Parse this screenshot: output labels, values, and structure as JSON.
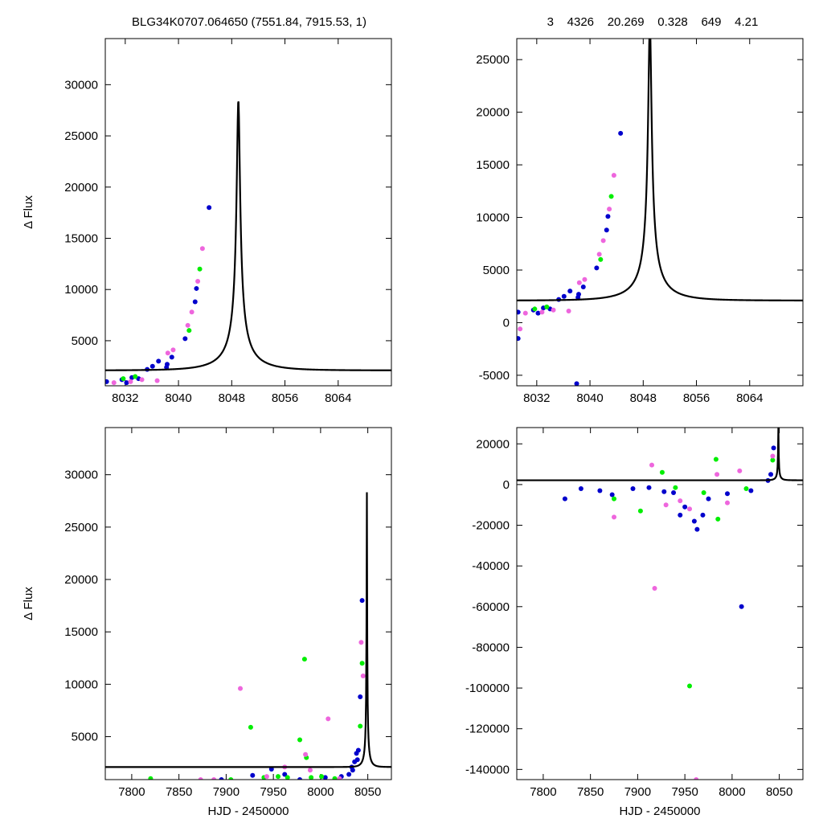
{
  "header": {
    "left_title": "BLG34K0707.064650 (7551.84, 7915.53,    1)",
    "right_title": "3    4326    20.269    0.328    649    4.21"
  },
  "colors": {
    "series_a": "#0000cc",
    "series_b": "#00ee00",
    "series_c": "#ee66dd",
    "model": "#000000"
  },
  "model_params": {
    "t0": 8049.0,
    "tE": 6.0,
    "u0": 0.04,
    "fs": 1100,
    "fb": 1000
  },
  "chart_data": [
    {
      "type": "scatter",
      "id": "top-left",
      "xlim": [
        8029,
        8072
      ],
      "ylim": [
        600,
        34500
      ],
      "xticks": [
        8032,
        8040,
        8048,
        8056,
        8064
      ],
      "yticks": [
        5000,
        10000,
        15000,
        20000,
        25000,
        30000
      ],
      "xlabel": "",
      "ylabel": "Δ Flux",
      "has_model": true,
      "series": [
        {
          "color": "series_a",
          "points": [
            [
              8029.2,
              1000
            ],
            [
              8031.5,
              1200
            ],
            [
              8032.2,
              900
            ],
            [
              8033.0,
              1400
            ],
            [
              8034.0,
              1300
            ],
            [
              8035.3,
              2200
            ],
            [
              8036.1,
              2500
            ],
            [
              8037.0,
              3000
            ],
            [
              8038.2,
              2400
            ],
            [
              8038.3,
              2700
            ],
            [
              8039.0,
              3400
            ],
            [
              8041.0,
              5200
            ],
            [
              8042.5,
              8800
            ],
            [
              8042.7,
              10100
            ],
            [
              8044.6,
              18000
            ]
          ]
        },
        {
          "color": "series_b",
          "points": [
            [
              8031.7,
              1300
            ],
            [
              8033.5,
              1500
            ],
            [
              8041.6,
              6000
            ],
            [
              8043.2,
              12000
            ]
          ]
        },
        {
          "color": "series_c",
          "points": [
            [
              8030.3,
              900
            ],
            [
              8032.8,
              1000
            ],
            [
              8034.5,
              1200
            ],
            [
              8036.8,
              1100
            ],
            [
              8038.4,
              3800
            ],
            [
              8039.2,
              4100
            ],
            [
              8041.4,
              6500
            ],
            [
              8042.0,
              7800
            ],
            [
              8042.9,
              10800
            ],
            [
              8043.6,
              14000
            ]
          ]
        }
      ]
    },
    {
      "type": "scatter",
      "id": "top-right",
      "xlim": [
        8029,
        8072
      ],
      "ylim": [
        -6000,
        27000
      ],
      "xticks": [
        8032,
        8040,
        8048,
        8056,
        8064
      ],
      "yticks": [
        -5000,
        0,
        5000,
        10000,
        15000,
        20000,
        25000
      ],
      "xlabel": "",
      "ylabel": "",
      "has_model": true,
      "series": [
        {
          "color": "series_a",
          "points": [
            [
              8029.2,
              1000
            ],
            [
              8029.2,
              -1500
            ],
            [
              8031.5,
              1200
            ],
            [
              8032.2,
              900
            ],
            [
              8033.0,
              1400
            ],
            [
              8034.0,
              1300
            ],
            [
              8035.3,
              2200
            ],
            [
              8036.1,
              2500
            ],
            [
              8037.0,
              3000
            ],
            [
              8038.2,
              2400
            ],
            [
              8038.3,
              2700
            ],
            [
              8039.0,
              3400
            ],
            [
              8041.0,
              5200
            ],
            [
              8042.5,
              8800
            ],
            [
              8042.7,
              10100
            ],
            [
              8044.6,
              18000
            ],
            [
              8038.0,
              -5800
            ]
          ]
        },
        {
          "color": "series_b",
          "points": [
            [
              8031.7,
              1300
            ],
            [
              8033.5,
              1500
            ],
            [
              8041.6,
              6000
            ],
            [
              8043.2,
              12000
            ]
          ]
        },
        {
          "color": "series_c",
          "points": [
            [
              8029.5,
              -600
            ],
            [
              8030.3,
              900
            ],
            [
              8032.8,
              1000
            ],
            [
              8034.5,
              1200
            ],
            [
              8036.8,
              1100
            ],
            [
              8038.4,
              3800
            ],
            [
              8039.2,
              4100
            ],
            [
              8041.4,
              6500
            ],
            [
              8042.0,
              7800
            ],
            [
              8042.9,
              10800
            ],
            [
              8043.6,
              14000
            ]
          ]
        }
      ]
    },
    {
      "type": "scatter",
      "id": "bottom-left",
      "xlim": [
        7772,
        8075
      ],
      "ylim": [
        900,
        34500
      ],
      "xticks": [
        7800,
        7850,
        7900,
        7950,
        8000,
        8050
      ],
      "yticks": [
        5000,
        10000,
        15000,
        20000,
        25000,
        30000
      ],
      "xlabel": "HJD - 2450000",
      "ylabel": "Δ Flux",
      "has_model": true,
      "series": [
        {
          "color": "series_a",
          "points": [
            [
              7895,
              900
            ],
            [
              7928,
              1300
            ],
            [
              7948,
              1900
            ],
            [
              7962,
              1400
            ],
            [
              7978,
              900
            ],
            [
              8005,
              1100
            ],
            [
              8022,
              1200
            ],
            [
              8030,
              1400
            ],
            [
              8034,
              1800
            ],
            [
              8036,
              2600
            ],
            [
              8038,
              3400
            ],
            [
              8040,
              3700
            ],
            [
              8042,
              8800
            ],
            [
              8044,
              18000
            ],
            [
              8033,
              2100
            ],
            [
              8039,
              2800
            ]
          ]
        },
        {
          "color": "series_b",
          "points": [
            [
              7820,
              1000
            ],
            [
              7905,
              900
            ],
            [
              7926,
              5900
            ],
            [
              7940,
              1100
            ],
            [
              7955,
              1200
            ],
            [
              7965,
              1100
            ],
            [
              7978,
              4700
            ],
            [
              7983,
              12400
            ],
            [
              7985,
              3000
            ],
            [
              7990,
              1100
            ],
            [
              8001,
              1200
            ],
            [
              8015,
              1000
            ],
            [
              8042,
              6000
            ],
            [
              8044,
              12000
            ]
          ]
        },
        {
          "color": "series_c",
          "points": [
            [
              7873,
              900
            ],
            [
              7887,
              900
            ],
            [
              7915,
              9600
            ],
            [
              7943,
              1200
            ],
            [
              7962,
              2100
            ],
            [
              7984,
              3300
            ],
            [
              7989,
              1800
            ],
            [
              8008,
              6700
            ],
            [
              8020,
              1000
            ],
            [
              8043,
              14000
            ],
            [
              8045,
              10800
            ]
          ]
        }
      ]
    },
    {
      "type": "scatter",
      "id": "bottom-right",
      "xlim": [
        7772,
        8075
      ],
      "ylim": [
        -145000,
        28000
      ],
      "xticks": [
        7800,
        7850,
        7900,
        7950,
        8000,
        8050
      ],
      "yticks": [
        -140000,
        -120000,
        -100000,
        -80000,
        -60000,
        -40000,
        -20000,
        0,
        20000
      ],
      "xlabel": "HJD - 2450000",
      "ylabel": "",
      "has_model": true,
      "series": [
        {
          "color": "series_a",
          "points": [
            [
              7823,
              -7000
            ],
            [
              7840,
              -2000
            ],
            [
              7860,
              -3000
            ],
            [
              7873,
              -5000
            ],
            [
              7895,
              -2000
            ],
            [
              7912,
              -1500
            ],
            [
              7928,
              -3500
            ],
            [
              7938,
              -4000
            ],
            [
              7945,
              -15000
            ],
            [
              7950,
              -11000
            ],
            [
              7960,
              -18000
            ],
            [
              7963,
              -22000
            ],
            [
              7969,
              -15000
            ],
            [
              7975,
              -7000
            ],
            [
              7995,
              -4500
            ],
            [
              8010,
              -60000
            ],
            [
              8020,
              -3000
            ],
            [
              8041,
              5000
            ],
            [
              8044,
              18000
            ],
            [
              8038,
              2000
            ]
          ]
        },
        {
          "color": "series_b",
          "points": [
            [
              7875,
              -7000
            ],
            [
              7903,
              -13000
            ],
            [
              7926,
              6000
            ],
            [
              7940,
              -1500
            ],
            [
              7955,
              -99000
            ],
            [
              7983,
              12400
            ],
            [
              7985,
              -17000
            ],
            [
              7970,
              -4000
            ],
            [
              8015,
              -2000
            ],
            [
              8043,
              12000
            ]
          ]
        },
        {
          "color": "series_c",
          "points": [
            [
              7875,
              -16000
            ],
            [
              7915,
              9600
            ],
            [
              7918,
              -51000
            ],
            [
              7930,
              -10000
            ],
            [
              7945,
              -8000
            ],
            [
              7962,
              -145000
            ],
            [
              7984,
              5000
            ],
            [
              7995,
              -9000
            ],
            [
              8008,
              6700
            ],
            [
              7955,
              -12000
            ],
            [
              8043,
              14000
            ]
          ]
        }
      ]
    }
  ]
}
